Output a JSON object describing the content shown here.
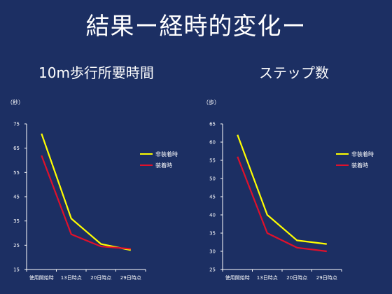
{
  "title": "結果ー経時的変化ー",
  "colors": {
    "background": "#1c2f63",
    "series_nonworn": "#ffff00",
    "series_worn": "#e0102b",
    "axis": "#ffffff"
  },
  "chart_data": [
    {
      "type": "line",
      "title": "10m歩行所要時間",
      "ylabel": "（秒）",
      "categories": [
        "使用開始時",
        "13日時点",
        "20日時点",
        "29日時点"
      ],
      "ylim": [
        15,
        75
      ],
      "yticks": [
        15,
        25,
        35,
        45,
        55,
        65,
        75
      ],
      "legend_position": "right",
      "series": [
        {
          "name": "非装着時",
          "color": "#ffff00",
          "values": [
            71,
            36,
            25.5,
            23
          ]
        },
        {
          "name": "装着時",
          "color": "#e0102b",
          "values": [
            62,
            29.5,
            24.5,
            23.5
          ]
        }
      ]
    },
    {
      "type": "line",
      "title": "ステップ数",
      "ylabel": "（歩）",
      "categories": [
        "使用開始時",
        "13日時点",
        "20日時点",
        "29日時点"
      ],
      "ylim": [
        25,
        65
      ],
      "yticks": [
        25,
        30,
        35,
        40,
        45,
        50,
        55,
        60,
        65
      ],
      "legend_position": "right",
      "series": [
        {
          "name": "非装着時",
          "color": "#ffff00",
          "values": [
            62,
            40,
            33,
            32
          ]
        },
        {
          "name": "装着時",
          "color": "#e0102b",
          "values": [
            56,
            35,
            31,
            30
          ]
        }
      ]
    }
  ]
}
